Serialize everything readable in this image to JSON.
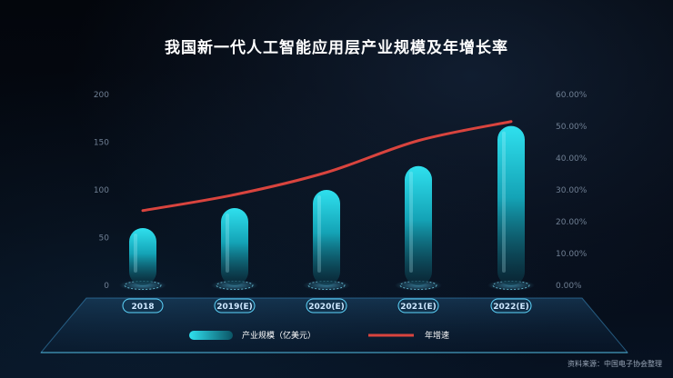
{
  "title": "我国新一代人工智能应用层产业规模及年增长率",
  "source": "资料来源：中国电子协会整理",
  "colors": {
    "bar": "#1fc8d8",
    "line": "#d9443e",
    "accent": "#5fd8ff"
  },
  "chart_data": {
    "type": "bar",
    "categories": [
      "2018",
      "2019(E)",
      "2020(E)",
      "2021(E)",
      "2022(E)"
    ],
    "series": [
      {
        "name": "产业规模（亿美元）",
        "type": "bar",
        "axis": "left",
        "values": [
          60,
          81,
          100,
          125,
          167
        ]
      },
      {
        "name": "年增速",
        "type": "line",
        "axis": "right",
        "values": [
          23.5,
          28.5,
          35.5,
          45.5,
          51.5
        ]
      }
    ],
    "ylim_left": [
      0,
      200
    ],
    "yticks_left": [
      "0",
      "50",
      "100",
      "150",
      "200"
    ],
    "ylim_right": [
      0,
      60
    ],
    "yticks_right": [
      "0.00%",
      "10.00%",
      "20.00%",
      "30.00%",
      "40.00%",
      "50.00%",
      "60.00%"
    ],
    "legend": {
      "placement": "bottom"
    },
    "grid": false
  }
}
